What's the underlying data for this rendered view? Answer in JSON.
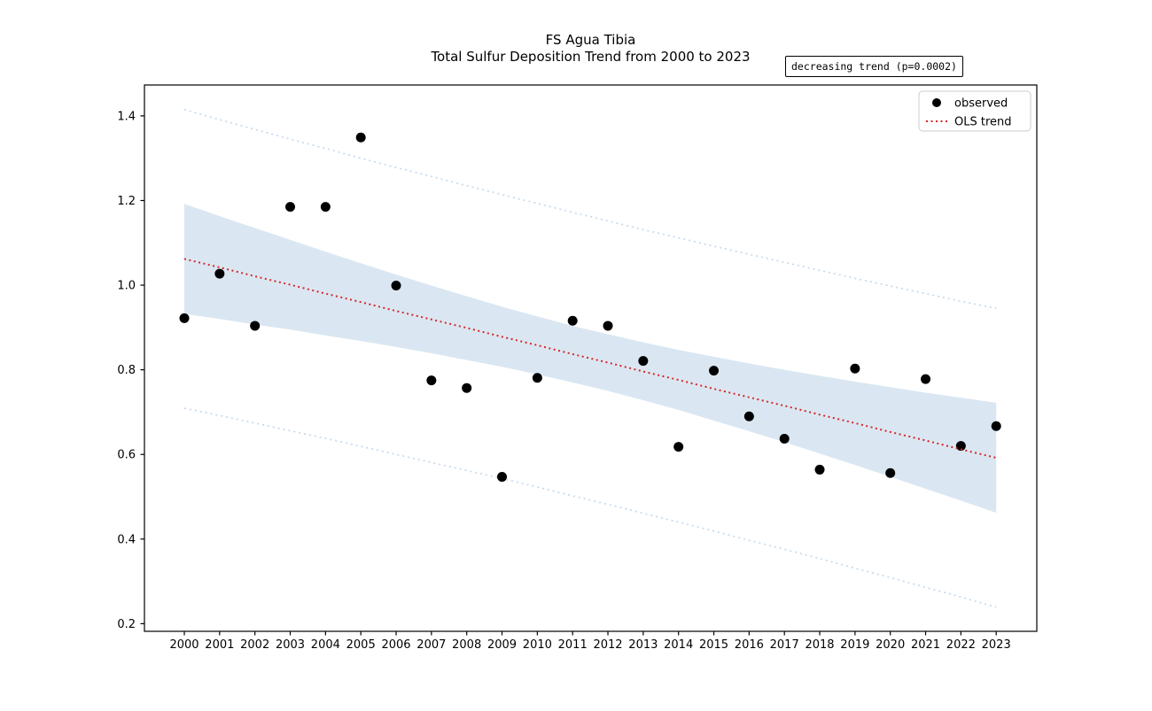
{
  "title": {
    "line1": "FS Agua Tibia",
    "line2": "Total Sulfur Deposition Trend from 2000 to 2023"
  },
  "annotation": {
    "text": "decreasing trend (p=0.0002)"
  },
  "legend": {
    "position": "upper right",
    "items": [
      {
        "label": "observed",
        "marker": "dot",
        "color": "#000000"
      },
      {
        "label": "OLS trend",
        "marker": "dotted-line",
        "color": "#d62728"
      }
    ]
  },
  "chart_data": {
    "type": "scatter",
    "title": "FS Agua Tibia",
    "subtitle": "Total Sulfur Deposition Trend from 2000 to 2023",
    "x": [
      2000,
      2001,
      2002,
      2003,
      2004,
      2005,
      2006,
      2007,
      2008,
      2009,
      2010,
      2011,
      2012,
      2013,
      2014,
      2015,
      2016,
      2017,
      2018,
      2019,
      2020,
      2021,
      2022,
      2023
    ],
    "series": [
      {
        "name": "observed",
        "type": "scatter",
        "color": "#000000",
        "values": [
          0.922,
          1.027,
          0.904,
          1.185,
          1.185,
          1.349,
          0.999,
          0.775,
          0.757,
          0.547,
          0.781,
          0.916,
          0.904,
          0.821,
          0.618,
          0.798,
          0.69,
          0.637,
          0.564,
          0.803,
          0.556,
          0.778,
          0.62,
          0.667
        ]
      },
      {
        "name": "OLS trend",
        "type": "line",
        "style": "dotted",
        "color": "#d62728",
        "values": [
          1.062,
          1.042,
          1.021,
          1.001,
          0.98,
          0.96,
          0.939,
          0.919,
          0.899,
          0.878,
          0.858,
          0.837,
          0.817,
          0.796,
          0.776,
          0.755,
          0.735,
          0.715,
          0.694,
          0.674,
          0.653,
          0.633,
          0.612,
          0.592
        ]
      }
    ],
    "ci_band": {
      "color": "#dae7f2",
      "upper": [
        1.192,
        1.163,
        1.135,
        1.107,
        1.079,
        1.052,
        1.025,
        0.999,
        0.974,
        0.949,
        0.926,
        0.904,
        0.884,
        0.865,
        0.847,
        0.831,
        0.815,
        0.8,
        0.786,
        0.772,
        0.759,
        0.746,
        0.734,
        0.722
      ],
      "lower": [
        0.932,
        0.92,
        0.907,
        0.895,
        0.881,
        0.868,
        0.854,
        0.839,
        0.823,
        0.807,
        0.789,
        0.77,
        0.75,
        0.728,
        0.705,
        0.68,
        0.655,
        0.629,
        0.602,
        0.575,
        0.547,
        0.519,
        0.491,
        0.462
      ]
    },
    "prediction_interval": {
      "color": "#c7dbee",
      "style": "dotted",
      "upper": [
        1.415,
        1.391,
        1.368,
        1.345,
        1.323,
        1.3,
        1.278,
        1.257,
        1.235,
        1.214,
        1.193,
        1.172,
        1.152,
        1.131,
        1.112,
        1.092,
        1.073,
        1.054,
        1.035,
        1.016,
        0.998,
        0.98,
        0.962,
        0.945
      ],
      "lower": [
        0.709,
        0.692,
        0.674,
        0.656,
        0.638,
        0.619,
        0.6,
        0.581,
        0.562,
        0.543,
        0.523,
        0.502,
        0.482,
        0.461,
        0.44,
        0.419,
        0.397,
        0.376,
        0.354,
        0.331,
        0.309,
        0.286,
        0.263,
        0.239
      ]
    },
    "xlim": [
      1998.87,
      2024.15
    ],
    "ylim": [
      0.182,
      1.473
    ],
    "xticks": [
      2000,
      2001,
      2002,
      2003,
      2004,
      2005,
      2006,
      2007,
      2008,
      2009,
      2010,
      2011,
      2012,
      2013,
      2014,
      2015,
      2016,
      2017,
      2018,
      2019,
      2020,
      2021,
      2022,
      2023
    ],
    "yticks": [
      0.2,
      0.4,
      0.6,
      0.8,
      1.0,
      1.2,
      1.4
    ],
    "grid": false,
    "legend_position": "upper right"
  }
}
